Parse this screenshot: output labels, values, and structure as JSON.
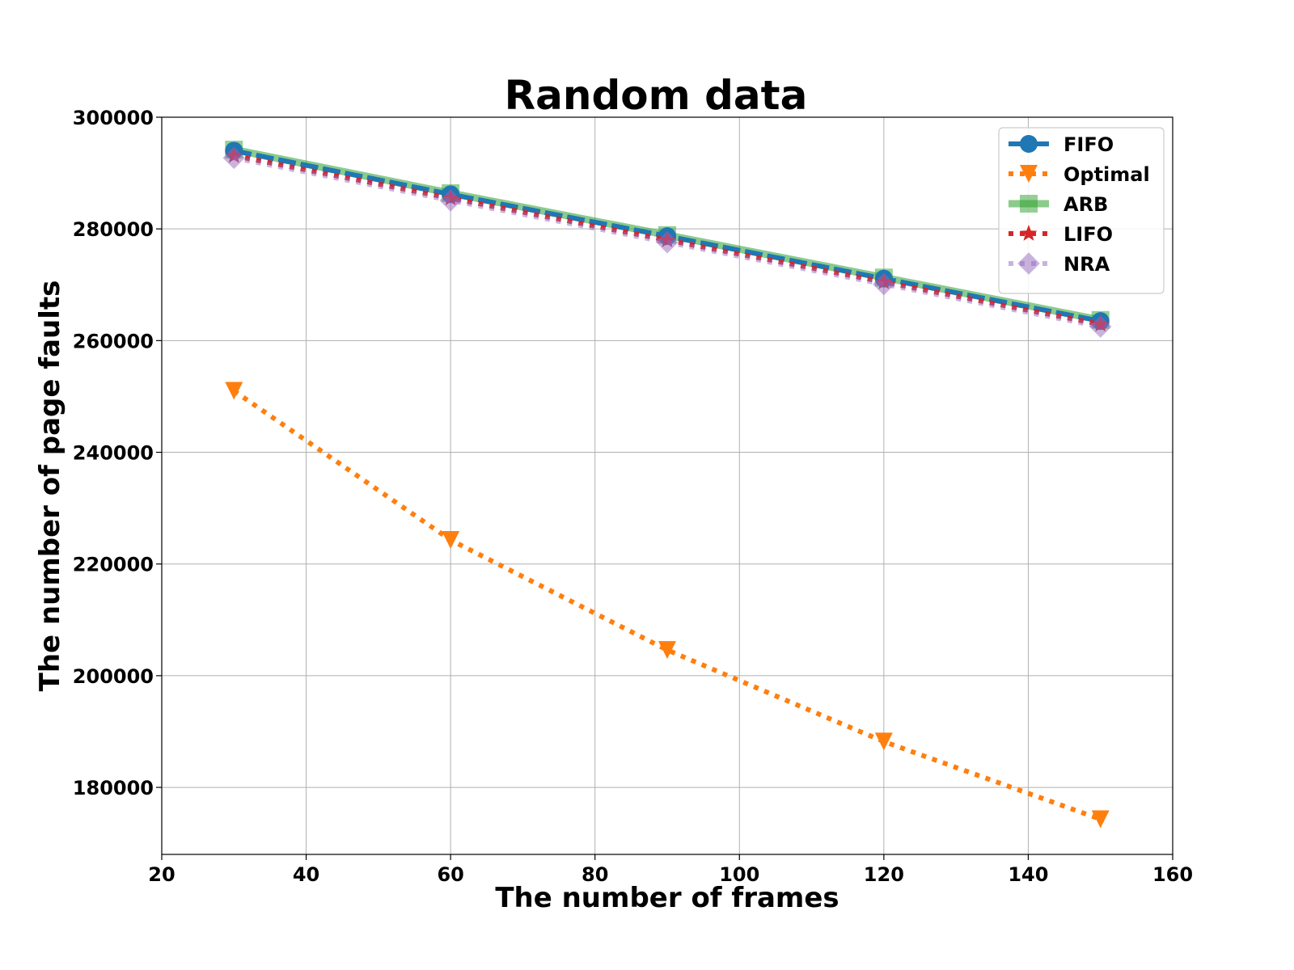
{
  "chart_data": {
    "type": "line",
    "title": "Random data",
    "xlabel": "The number of frames",
    "ylabel": "The number of page faults",
    "xlim": [
      20,
      160
    ],
    "ylim": [
      168000,
      300000
    ],
    "xticks": [
      20,
      40,
      60,
      80,
      100,
      120,
      140,
      160
    ],
    "yticks": [
      180000,
      200000,
      220000,
      240000,
      260000,
      280000,
      300000
    ],
    "grid": true,
    "legend_position": "top-right",
    "x": [
      30,
      60,
      90,
      120,
      150
    ],
    "series": [
      {
        "name": "FIFO",
        "values": [
          294000,
          286200,
          278700,
          271100,
          263500
        ],
        "color": "#1f77b4",
        "marker": "circle",
        "line_style": "dashed"
      },
      {
        "name": "Optimal",
        "values": [
          251000,
          224300,
          204600,
          188200,
          174300
        ],
        "color": "#ff7f0e",
        "marker": "triangle-down",
        "line_style": "dotted"
      },
      {
        "name": "ARB",
        "values": [
          294200,
          286400,
          278900,
          271300,
          263700
        ],
        "color": "#2ca02c",
        "marker": "square",
        "line_style": "solid"
      },
      {
        "name": "LIFO",
        "values": [
          293100,
          285500,
          278000,
          270500,
          262900
        ],
        "color": "#d62728",
        "marker": "star",
        "line_style": "dotted"
      },
      {
        "name": "NRA",
        "values": [
          292700,
          285100,
          277600,
          270100,
          262500
        ],
        "color": "#9467bd",
        "marker": "diamond",
        "line_style": "dotted"
      }
    ]
  }
}
